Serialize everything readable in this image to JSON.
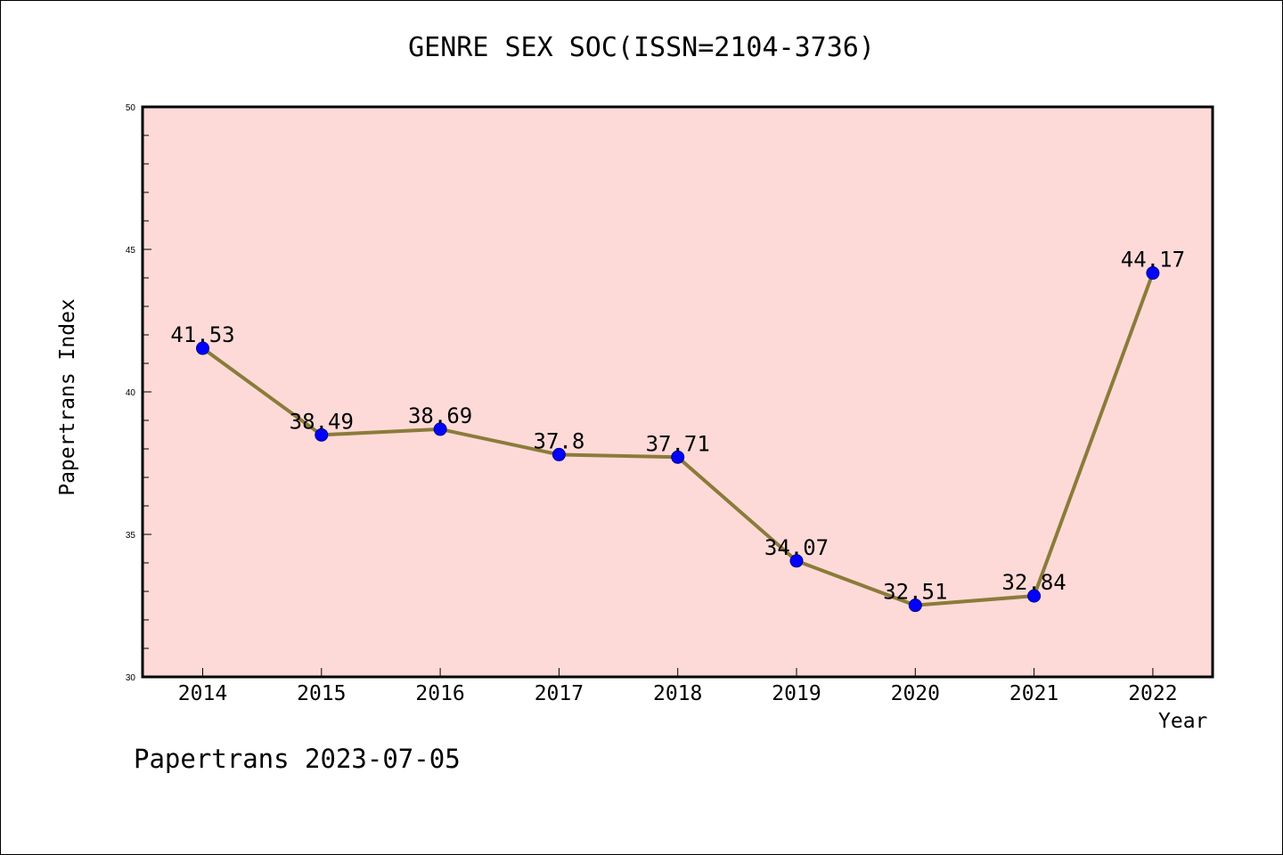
{
  "chart_data": {
    "type": "line",
    "title": "GENRE SEX SOC(ISSN=2104-3736)",
    "xlabel": "Year",
    "ylabel": "Papertrans Index",
    "categories": [
      "2014",
      "2015",
      "2016",
      "2017",
      "2018",
      "2019",
      "2020",
      "2021",
      "2022"
    ],
    "series": [
      {
        "values": [
          41.53,
          38.49,
          38.69,
          37.8,
          37.71,
          34.07,
          32.51,
          32.84,
          44.17
        ],
        "labels": [
          "41.53",
          "38.49",
          "38.69",
          "37.8",
          "37.71",
          "34.07",
          "32.51",
          "32.84",
          "44.17"
        ]
      }
    ],
    "ylim": [
      30,
      50
    ],
    "yticks": [
      "30",
      "35",
      "40",
      "45",
      "50"
    ],
    "grid": false,
    "colors": {
      "plot_background": "#FDDAD8",
      "line": "#8B7B3A",
      "marker": "#0000FF"
    }
  },
  "footer": "Papertrans 2023-07-05"
}
